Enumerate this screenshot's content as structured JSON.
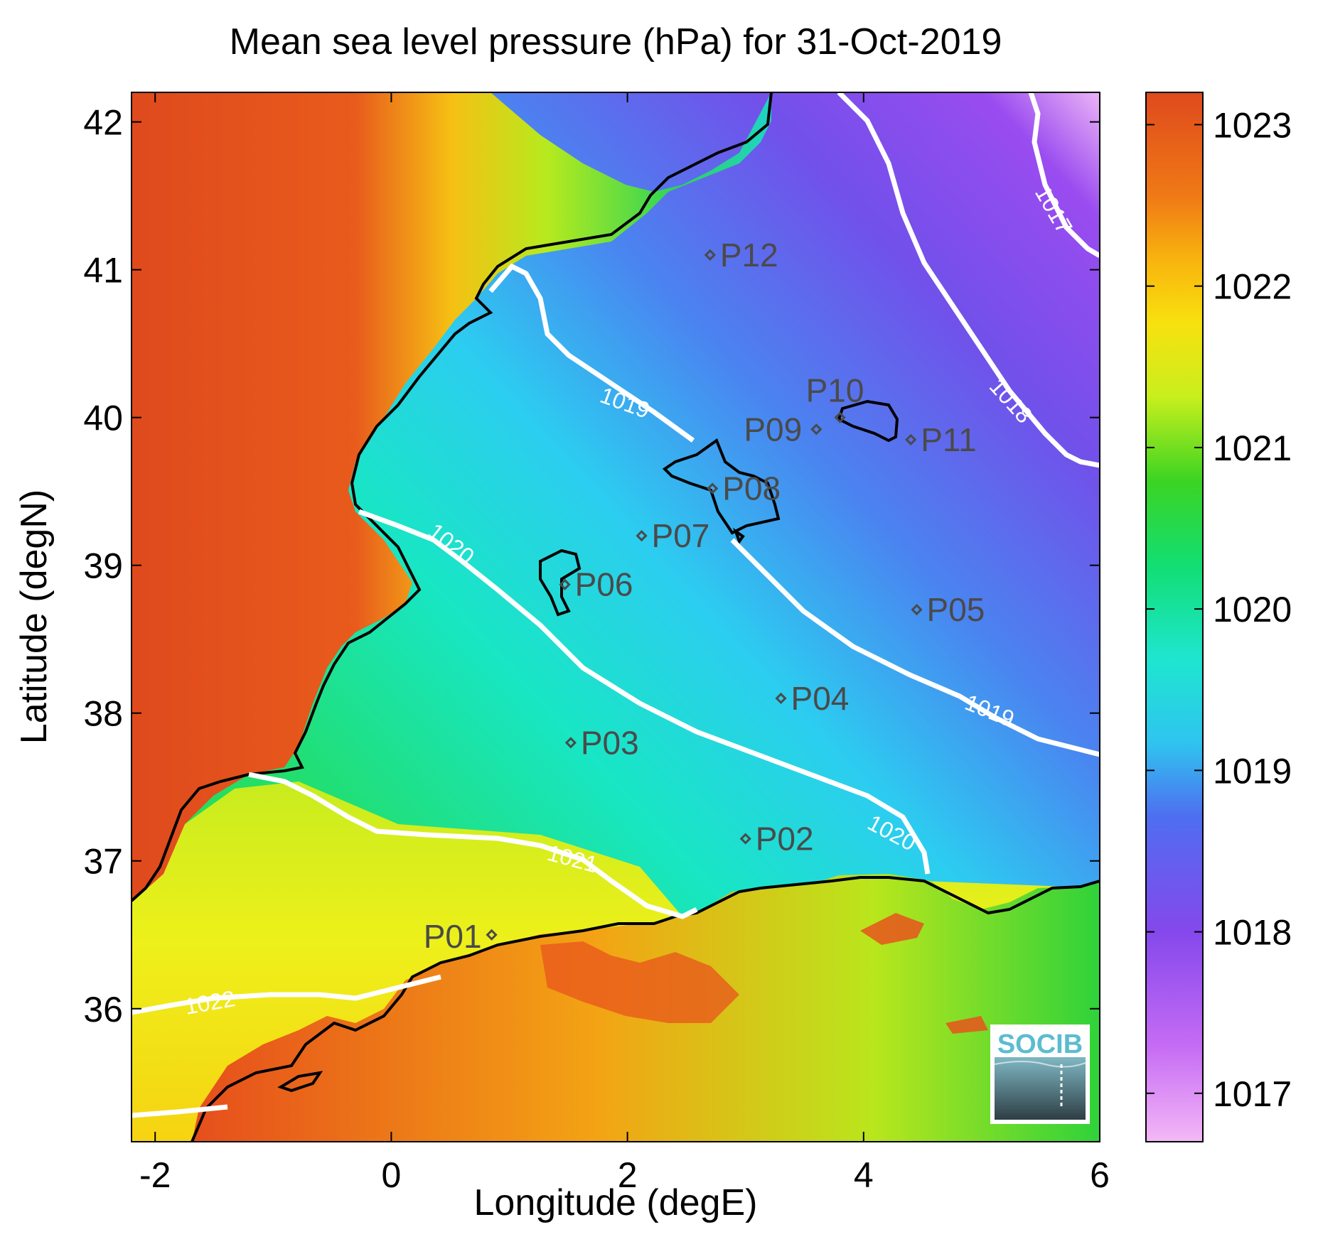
{
  "title": "Mean sea level pressure (hPa) for 31-Oct-2019",
  "chart_data": {
    "type": "heatmap",
    "title": "Mean sea level pressure (hPa) for 31-Oct-2019",
    "xlabel": "Longitude (degE)",
    "ylabel": "Latitude (degN)",
    "xlim": [
      -2.2,
      6
    ],
    "ylim": [
      35.1,
      42.2
    ],
    "x_ticks": [
      "-2",
      "0",
      "2",
      "4",
      "6"
    ],
    "y_ticks": [
      "36",
      "37",
      "38",
      "39",
      "40",
      "41",
      "42"
    ],
    "colorbar": {
      "range": [
        1016.7,
        1023.2
      ],
      "ticks": [
        "1017",
        "1018",
        "1019",
        "1020",
        "1021",
        "1022",
        "1023"
      ],
      "colormap": [
        "#f0a8f4",
        "#b35af2",
        "#7a48e8",
        "#4a86f0",
        "#2adfe8",
        "#12e89a",
        "#2ed42a",
        "#b8ec1e",
        "#f5e90f",
        "#f8b00e",
        "#ef6a18",
        "#de4b1d"
      ]
    },
    "contours": [
      {
        "level": "1017",
        "label": "1017"
      },
      {
        "level": "1018",
        "label": "1018"
      },
      {
        "level": "1019",
        "label": "1019"
      },
      {
        "level": "1020",
        "label": "1020"
      },
      {
        "level": "1021",
        "label": "1021"
      },
      {
        "level": "1022",
        "label": "1022"
      }
    ],
    "points": [
      {
        "label": "P01",
        "lon": 0.85,
        "lat": 36.5
      },
      {
        "label": "P02",
        "lon": 3.0,
        "lat": 37.15
      },
      {
        "label": "P03",
        "lon": 1.52,
        "lat": 37.8
      },
      {
        "label": "P04",
        "lon": 3.3,
        "lat": 38.1
      },
      {
        "label": "P05",
        "lon": 4.45,
        "lat": 38.7
      },
      {
        "label": "P06",
        "lon": 1.47,
        "lat": 38.87
      },
      {
        "label": "P07",
        "lon": 2.12,
        "lat": 39.2
      },
      {
        "label": "P08",
        "lon": 2.72,
        "lat": 39.52
      },
      {
        "label": "P09",
        "lon": 3.6,
        "lat": 39.92
      },
      {
        "label": "P10",
        "lon": 3.8,
        "lat": 40.0
      },
      {
        "label": "P11",
        "lon": 4.4,
        "lat": 39.85
      },
      {
        "label": "P12",
        "lon": 2.7,
        "lat": 41.1
      }
    ]
  },
  "logo": {
    "text": "SOCIB",
    "color": "#5bbccf"
  }
}
